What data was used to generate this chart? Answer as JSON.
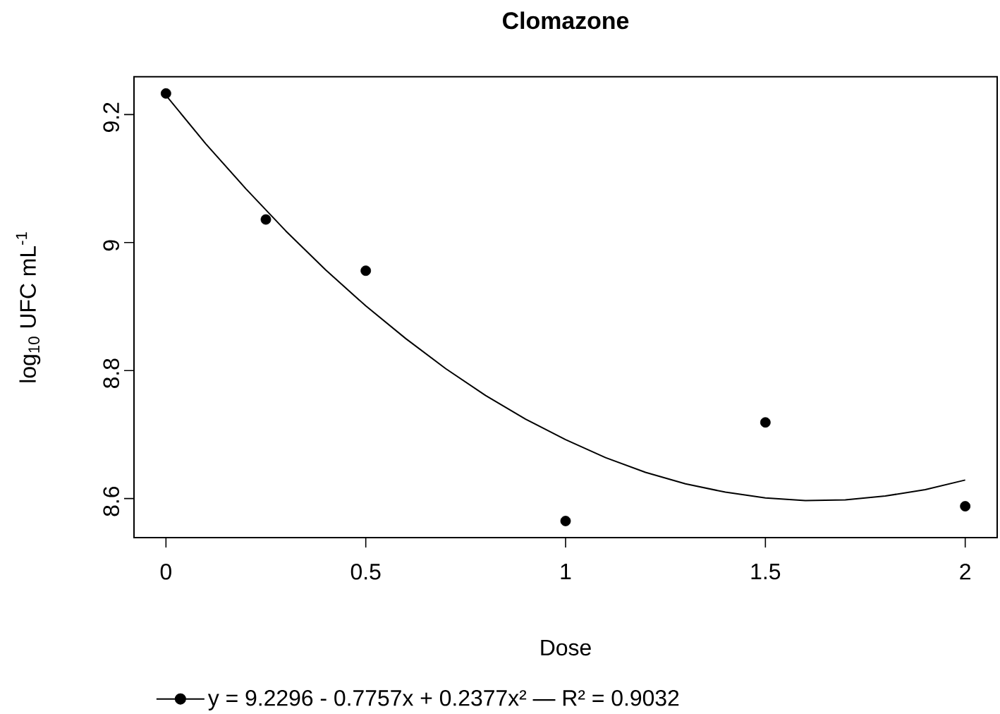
{
  "chart_data": {
    "type": "scatter",
    "title": "Clomazone",
    "xlabel": "Dose",
    "ylabel": "log$_{10}$ UFC mL$^{-1}$",
    "xlim": [
      -0.08,
      2.08
    ],
    "ylim": [
      8.539,
      9.259
    ],
    "xticks": [
      0,
      0.5,
      1,
      1.5,
      2
    ],
    "yticks": [
      8.6,
      8.8,
      9,
      9.2
    ],
    "legend": "bottom",
    "marker": "circle",
    "series": [
      {
        "color": "#000000",
        "x": [
          0,
          0.25,
          0.5,
          1,
          1.5,
          2
        ],
        "values": [
          9.233,
          9.036,
          8.956,
          8.565,
          8.719,
          8.588
        ]
      },
      {
        "type": "line",
        "marker": "none",
        "name": "y = 9.2296 - 0.7757x + 0.2377x² — R² = 0.9032",
        "color": "#000000",
        "x": [
          0,
          0.1,
          0.2,
          0.3,
          0.4,
          0.5,
          0.6,
          0.7,
          0.8,
          0.9,
          1,
          1.1,
          1.2,
          1.3,
          1.4,
          1.5,
          1.6,
          1.7,
          1.8,
          1.9,
          2
        ],
        "values": [
          9.23,
          9.154,
          9.084,
          9.018,
          8.957,
          8.901,
          8.85,
          8.803,
          8.761,
          8.724,
          8.692,
          8.664,
          8.641,
          8.623,
          8.61,
          8.601,
          8.597,
          8.598,
          8.604,
          8.614,
          8.629
        ]
      }
    ]
  }
}
